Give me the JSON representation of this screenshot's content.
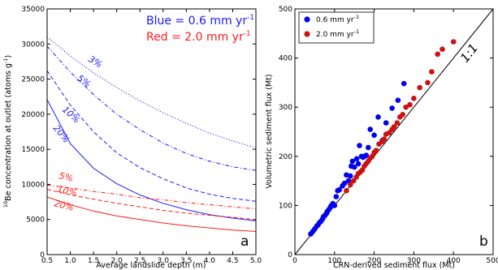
{
  "chart_data": [
    {
      "type": "line",
      "panel_label": "a",
      "xlabel": "Average landslide depth (m)",
      "ylabel_sup": "10",
      "ylabel": "Be concentration at outlet (atoms g",
      "ylabel_exp": "-1",
      "ylabel_close": ")",
      "xlim": [
        0.5,
        5.0
      ],
      "ylim": [
        0,
        35000
      ],
      "xticks": [
        "0.5",
        "1.0",
        "1.5",
        "2.0",
        "2.5",
        "3.0",
        "3.5",
        "4.0",
        "4.5",
        "5.0"
      ],
      "yticks": [
        "0",
        "5000",
        "10000",
        "15000",
        "20000",
        "25000",
        "30000",
        "35000"
      ],
      "legend_text": [
        {
          "text": "Blue = 0.6 mm yr",
          "exp": "-1",
          "color": "#1a1aff"
        },
        {
          "text": "Red = 2.0 mm yr",
          "exp": "-1",
          "color": "#ff1a1a"
        }
      ],
      "series": [
        {
          "name": "3%",
          "color": "blue",
          "style": "dotted",
          "x": [
            0.5,
            1.0,
            1.5,
            2.0,
            2.5,
            3.0,
            3.5,
            4.0,
            4.5,
            5.0
          ],
          "y": [
            31000,
            28300,
            25900,
            23800,
            21900,
            20200,
            18700,
            17300,
            16200,
            15200
          ]
        },
        {
          "name": "5%",
          "color": "blue",
          "style": "dashdot",
          "x": [
            0.5,
            1.0,
            1.5,
            2.0,
            2.5,
            3.0,
            3.5,
            4.0,
            4.5,
            5.0
          ],
          "y": [
            29700,
            26000,
            22800,
            20000,
            17800,
            15900,
            14400,
            13300,
            12500,
            12000
          ]
        },
        {
          "name": "10%",
          "color": "blue",
          "style": "dashed",
          "x": [
            0.5,
            1.0,
            1.5,
            2.0,
            2.5,
            3.0,
            3.5,
            4.0,
            4.5,
            5.0
          ],
          "y": [
            26200,
            21300,
            17500,
            14500,
            12400,
            10800,
            9500,
            8600,
            8000,
            7600
          ]
        },
        {
          "name": "20%",
          "color": "blue",
          "style": "solid",
          "x": [
            0.5,
            1.0,
            1.5,
            2.0,
            2.5,
            3.0,
            3.5,
            4.0,
            4.5,
            5.0
          ],
          "y": [
            22100,
            15800,
            12300,
            10100,
            8500,
            7300,
            6400,
            5700,
            5200,
            4800
          ]
        },
        {
          "name": "5%",
          "color": "red",
          "style": "dashdot",
          "x": [
            0.5,
            1.0,
            1.5,
            2.0,
            2.5,
            3.0,
            3.5,
            4.0,
            4.5,
            5.0
          ],
          "y": [
            9900,
            9500,
            9000,
            8600,
            8100,
            7800,
            7400,
            7100,
            6800,
            6500
          ]
        },
        {
          "name": "10%",
          "color": "red",
          "style": "dashed",
          "x": [
            0.5,
            1.0,
            1.5,
            2.0,
            2.5,
            3.0,
            3.5,
            4.0,
            4.5,
            5.0
          ],
          "y": [
            9300,
            8500,
            7900,
            7300,
            6800,
            6300,
            5900,
            5600,
            5300,
            5000
          ]
        },
        {
          "name": "20%",
          "color": "red",
          "style": "solid",
          "x": [
            0.5,
            1.0,
            1.5,
            2.0,
            2.5,
            3.0,
            3.5,
            4.0,
            4.5,
            5.0
          ],
          "y": [
            8200,
            7100,
            6200,
            5500,
            5000,
            4500,
            4100,
            3800,
            3500,
            3300
          ]
        }
      ],
      "annotations": [
        "3%",
        "5%",
        "10%",
        "20%",
        "5%",
        "10%",
        "20%"
      ]
    },
    {
      "type": "scatter",
      "panel_label": "b",
      "xlabel": "CRN-derived sediment flux (Mt)",
      "ylabel": "Volumetric sediment flux (Mt)",
      "xlim": [
        0,
        500
      ],
      "ylim": [
        0,
        500
      ],
      "xticks": [
        "0",
        "100",
        "200",
        "300",
        "400",
        "500"
      ],
      "yticks": [
        "0",
        "100",
        "200",
        "300",
        "400",
        "500"
      ],
      "reference_line_label": "1:1",
      "legend": {
        "placement": "top-left"
      },
      "series": [
        {
          "name": "0.6 mm yr",
          "name_exp": "-1",
          "color": "#0000ee",
          "points": [
            [
              40,
              42
            ],
            [
              45,
              47
            ],
            [
              50,
              52
            ],
            [
              55,
              58
            ],
            [
              58,
              60
            ],
            [
              62,
              65
            ],
            [
              66,
              68
            ],
            [
              70,
              73
            ],
            [
              72,
              77
            ],
            [
              76,
              80
            ],
            [
              80,
              84
            ],
            [
              82,
              88
            ],
            [
              86,
              92
            ],
            [
              90,
              97
            ],
            [
              92,
              100
            ],
            [
              96,
              104
            ],
            [
              100,
              100
            ],
            [
              104,
              118
            ],
            [
              108,
              130
            ],
            [
              112,
              132
            ],
            [
              120,
              140
            ],
            [
              125,
              145
            ],
            [
              130,
              162
            ],
            [
              135,
              150
            ],
            [
              140,
              160
            ],
            [
              142,
              180
            ],
            [
              145,
              190
            ],
            [
              150,
              178
            ],
            [
              156,
              195
            ],
            [
              160,
              185
            ],
            [
              163,
              222
            ],
            [
              168,
              200
            ],
            [
              172,
              198
            ],
            [
              176,
              200
            ],
            [
              180,
              202
            ],
            [
              185,
              218
            ],
            [
              190,
              255
            ],
            [
              200,
              243
            ],
            [
              210,
              280
            ],
            [
              220,
              232
            ],
            [
              230,
              268
            ],
            [
              245,
              298
            ],
            [
              260,
              314
            ],
            [
              275,
              348
            ]
          ]
        },
        {
          "name": "2.0 mm yr",
          "name_exp": "-1",
          "color": "#cc1111",
          "points": [
            [
              130,
              130
            ],
            [
              140,
              142
            ],
            [
              148,
              150
            ],
            [
              155,
              158
            ],
            [
              160,
              165
            ],
            [
              165,
              168
            ],
            [
              170,
              172
            ],
            [
              175,
              180
            ],
            [
              180,
              185
            ],
            [
              185,
              190
            ],
            [
              190,
              196
            ],
            [
              195,
              200
            ],
            [
              200,
              208
            ],
            [
              205,
              212
            ],
            [
              212,
              225
            ],
            [
              220,
              230
            ],
            [
              225,
              235
            ],
            [
              230,
              245
            ],
            [
              238,
              248
            ],
            [
              245,
              255
            ],
            [
              250,
              260
            ],
            [
              258,
              268
            ],
            [
              265,
              280
            ],
            [
              272,
              285
            ],
            [
              280,
              300
            ],
            [
              290,
              305
            ],
            [
              300,
              318
            ],
            [
              315,
              340
            ],
            [
              335,
              350
            ],
            [
              345,
              372
            ],
            [
              360,
              408
            ],
            [
              372,
              418
            ],
            [
              400,
              433
            ]
          ]
        }
      ]
    }
  ]
}
